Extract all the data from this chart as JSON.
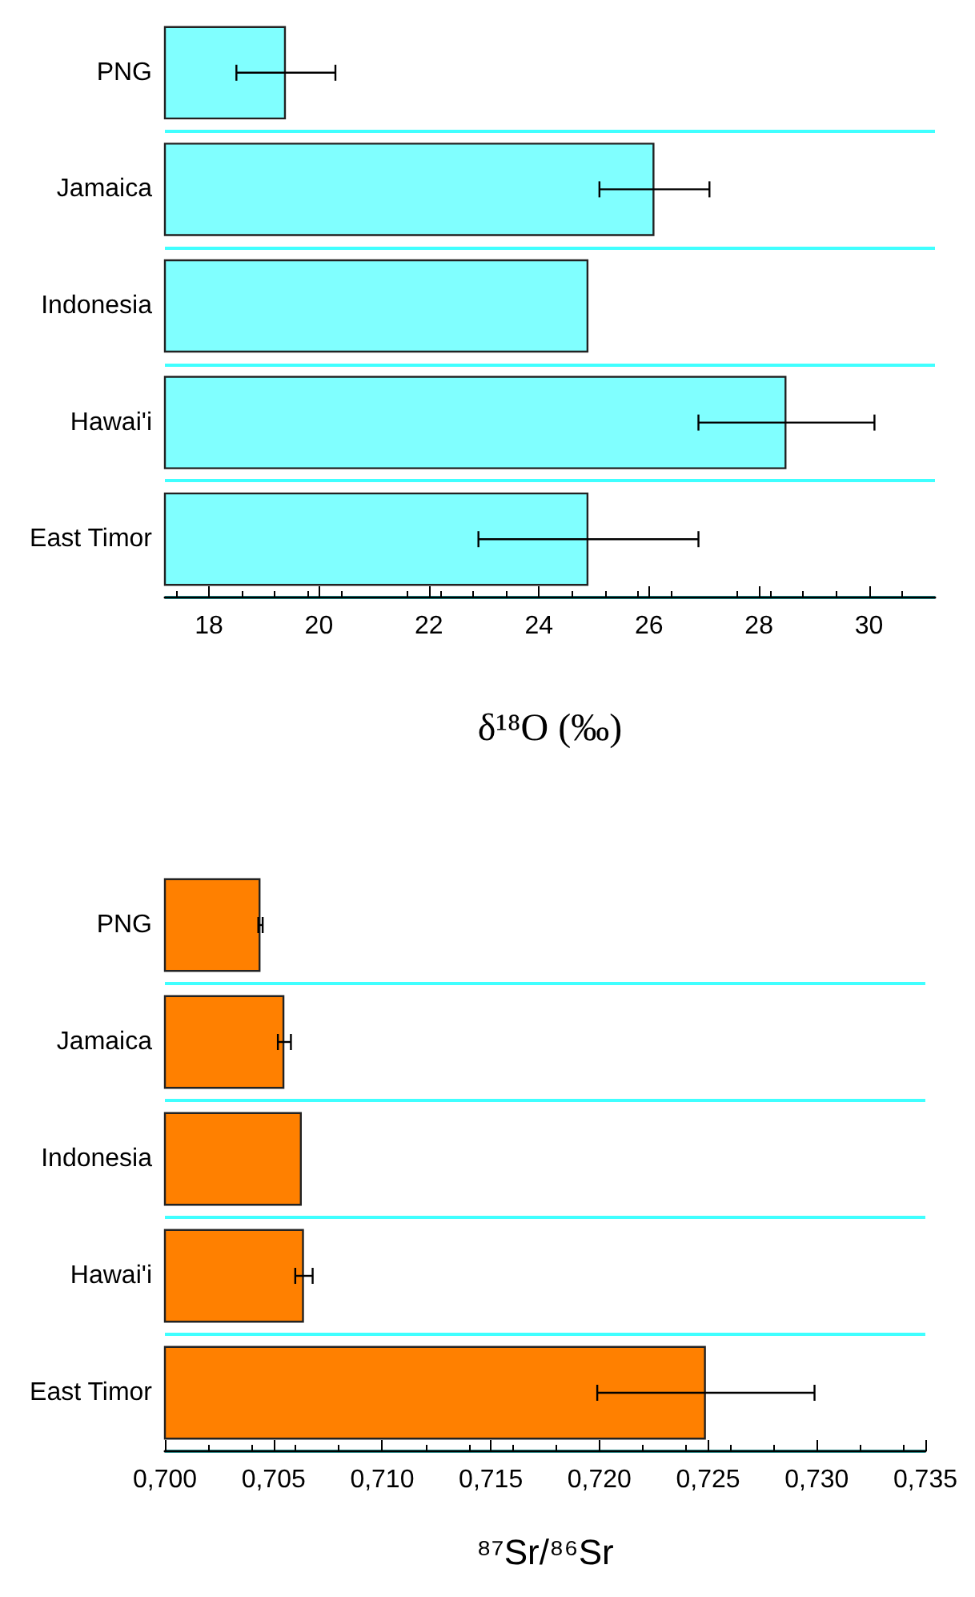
{
  "chart_data": [
    {
      "type": "bar",
      "orientation": "horizontal",
      "categories": [
        "PNG",
        "Jamaica",
        "Indonesia",
        "Hawai'i",
        "East Timor"
      ],
      "values": [
        19.4,
        26.1,
        24.9,
        28.5,
        24.9
      ],
      "errors": [
        0.9,
        1.0,
        null,
        1.6,
        2.0
      ],
      "color": "#80ffff",
      "xlim": [
        17.2,
        31.2
      ],
      "xticks": [
        18,
        20,
        22,
        24,
        26,
        28,
        30
      ],
      "xlabel": "δ¹⁸O (‰)",
      "grid": "y"
    },
    {
      "type": "bar",
      "orientation": "horizontal",
      "categories": [
        "PNG",
        "Jamaica",
        "Indonesia",
        "Hawai'i",
        "East Timor"
      ],
      "values": [
        0.7044,
        0.7055,
        0.7063,
        0.7064,
        0.7249
      ],
      "errors": [
        0.0001,
        0.0003,
        null,
        0.0004,
        0.005
      ],
      "color": "#ff8000",
      "xlim": [
        0.7,
        0.735
      ],
      "xticks": [
        {
          "value": 0.7,
          "label": "0,700"
        },
        {
          "value": 0.705,
          "label": "0,705"
        },
        {
          "value": 0.71,
          "label": "0,710"
        },
        {
          "value": 0.715,
          "label": "0,715"
        },
        {
          "value": 0.72,
          "label": "0,720"
        },
        {
          "value": 0.725,
          "label": "0,725"
        },
        {
          "value": 0.73,
          "label": "0,730"
        },
        {
          "value": 0.735,
          "label": "0,735"
        }
      ],
      "xlabel": "⁸⁷Sr/⁸⁶Sr",
      "grid": "y"
    }
  ]
}
